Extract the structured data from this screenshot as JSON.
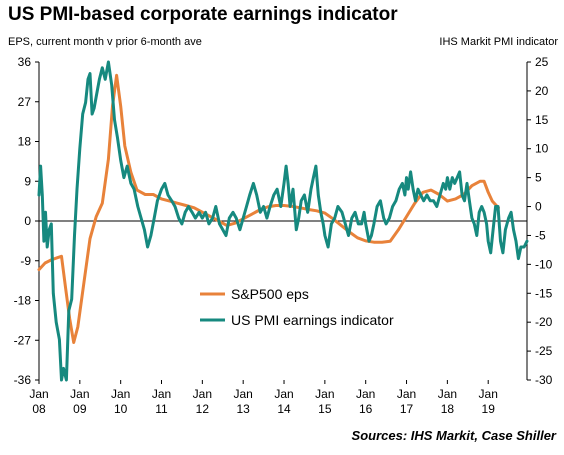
{
  "title": "US PMI-based corporate earnings indicator",
  "source": "Sources: IHS Markit, Case Shiller",
  "chart_data": {
    "type": "line",
    "title": "US PMI-based corporate earnings indicator",
    "left_axis": {
      "label": "EPS, current month v prior 6-month ave",
      "ylim": [
        -36,
        36
      ],
      "ticks": [
        -36,
        -27,
        -18,
        -9,
        0,
        9,
        18,
        27,
        36
      ]
    },
    "right_axis": {
      "label": "IHS Markit PMI indicator",
      "ylim": [
        -30,
        25
      ],
      "ticks": [
        -30,
        -25,
        -20,
        -15,
        -10,
        -5,
        0,
        5,
        10,
        15,
        20,
        25
      ]
    },
    "x_ticks": [
      {
        "line1": "Jan",
        "line2": "08",
        "x": 2008.0
      },
      {
        "line1": "Jan",
        "line2": "09",
        "x": 2009.0
      },
      {
        "line1": "Jan",
        "line2": "10",
        "x": 2010.0
      },
      {
        "line1": "Jan",
        "line2": "11",
        "x": 2011.0
      },
      {
        "line1": "Jan",
        "line2": "12",
        "x": 2012.0
      },
      {
        "line1": "Jan",
        "line2": "13",
        "x": 2013.0
      },
      {
        "line1": "Jan",
        "line2": "14",
        "x": 2014.0
      },
      {
        "line1": "Jan",
        "line2": "15",
        "x": 2015.0
      },
      {
        "line1": "Jan",
        "line2": "16",
        "x": 2016.0
      },
      {
        "line1": "Jan",
        "line2": "17",
        "x": 2017.0
      },
      {
        "line1": "Jan",
        "line2": "18",
        "x": 2018.0
      },
      {
        "line1": "Jan",
        "line2": "19",
        "x": 2019.0
      }
    ],
    "xlim": [
      2008.0,
      2019.95
    ],
    "grid": false,
    "legend_placement": "lower-center",
    "series": [
      {
        "name": "S&P500 eps",
        "axis": "left",
        "color": "#E8823A",
        "points": [
          [
            2008.0,
            -11
          ],
          [
            2008.15,
            -9.5
          ],
          [
            2008.3,
            -8.8
          ],
          [
            2008.45,
            -8.3
          ],
          [
            2008.55,
            -8
          ],
          [
            2008.65,
            -15
          ],
          [
            2008.75,
            -22
          ],
          [
            2008.85,
            -27.5
          ],
          [
            2008.95,
            -24
          ],
          [
            2009.1,
            -14
          ],
          [
            2009.25,
            -4
          ],
          [
            2009.4,
            1
          ],
          [
            2009.55,
            4
          ],
          [
            2009.7,
            14
          ],
          [
            2009.8,
            26
          ],
          [
            2009.9,
            33
          ],
          [
            2010.0,
            26
          ],
          [
            2010.1,
            17
          ],
          [
            2010.25,
            11
          ],
          [
            2010.4,
            7
          ],
          [
            2010.6,
            6
          ],
          [
            2010.8,
            6
          ],
          [
            2011.0,
            5
          ],
          [
            2011.2,
            4.5
          ],
          [
            2011.4,
            4
          ],
          [
            2011.6,
            3.5
          ],
          [
            2011.8,
            3
          ],
          [
            2012.0,
            2
          ],
          [
            2012.2,
            1
          ],
          [
            2012.4,
            0
          ],
          [
            2012.6,
            -1
          ],
          [
            2012.8,
            -0.5
          ],
          [
            2013.0,
            0.5
          ],
          [
            2013.2,
            1.5
          ],
          [
            2013.4,
            2.5
          ],
          [
            2013.6,
            3.2
          ],
          [
            2013.8,
            3.5
          ],
          [
            2014.0,
            3.5
          ],
          [
            2014.2,
            3.3
          ],
          [
            2014.4,
            3
          ],
          [
            2014.6,
            2.6
          ],
          [
            2014.8,
            2.3
          ],
          [
            2015.0,
            1.8
          ],
          [
            2015.2,
            0.5
          ],
          [
            2015.4,
            -1
          ],
          [
            2015.6,
            -2.5
          ],
          [
            2015.8,
            -3.8
          ],
          [
            2016.0,
            -4.5
          ],
          [
            2016.2,
            -4.8
          ],
          [
            2016.4,
            -4.8
          ],
          [
            2016.6,
            -4.6
          ],
          [
            2016.8,
            -2
          ],
          [
            2017.0,
            1
          ],
          [
            2017.2,
            4
          ],
          [
            2017.4,
            6.5
          ],
          [
            2017.6,
            7
          ],
          [
            2017.8,
            6
          ],
          [
            2018.0,
            4.5
          ],
          [
            2018.2,
            5
          ],
          [
            2018.4,
            6
          ],
          [
            2018.6,
            8
          ],
          [
            2018.8,
            9
          ],
          [
            2018.9,
            9
          ],
          [
            2019.0,
            6.5
          ],
          [
            2019.1,
            4.5
          ],
          [
            2019.25,
            3
          ]
        ]
      },
      {
        "name": "US PMI earnings indicator",
        "axis": "right",
        "color": "#16897F",
        "points": [
          [
            2008.0,
            2
          ],
          [
            2008.04,
            7
          ],
          [
            2008.08,
            2
          ],
          [
            2008.12,
            -6
          ],
          [
            2008.16,
            -1
          ],
          [
            2008.2,
            -7
          ],
          [
            2008.25,
            -4
          ],
          [
            2008.3,
            -3
          ],
          [
            2008.35,
            -15
          ],
          [
            2008.42,
            -20
          ],
          [
            2008.5,
            -23
          ],
          [
            2008.55,
            -30
          ],
          [
            2008.6,
            -28
          ],
          [
            2008.67,
            -30
          ],
          [
            2008.73,
            -18
          ],
          [
            2008.8,
            -16
          ],
          [
            2008.87,
            -5
          ],
          [
            2008.93,
            3
          ],
          [
            2009.0,
            10
          ],
          [
            2009.07,
            16
          ],
          [
            2009.14,
            18
          ],
          [
            2009.2,
            22
          ],
          [
            2009.25,
            23
          ],
          [
            2009.3,
            16
          ],
          [
            2009.35,
            17
          ],
          [
            2009.4,
            19
          ],
          [
            2009.48,
            22
          ],
          [
            2009.55,
            24
          ],
          [
            2009.62,
            22
          ],
          [
            2009.7,
            25
          ],
          [
            2009.78,
            21
          ],
          [
            2009.85,
            15
          ],
          [
            2009.92,
            12
          ],
          [
            2010.0,
            8
          ],
          [
            2010.08,
            5
          ],
          [
            2010.16,
            7
          ],
          [
            2010.25,
            4
          ],
          [
            2010.33,
            3
          ],
          [
            2010.42,
            0
          ],
          [
            2010.5,
            -2
          ],
          [
            2010.58,
            -4
          ],
          [
            2010.66,
            -7
          ],
          [
            2010.74,
            -5
          ],
          [
            2010.82,
            -2
          ],
          [
            2010.9,
            1
          ],
          [
            2011.0,
            3
          ],
          [
            2011.08,
            4
          ],
          [
            2011.16,
            2
          ],
          [
            2011.25,
            1
          ],
          [
            2011.33,
            0
          ],
          [
            2011.42,
            -2
          ],
          [
            2011.5,
            -3
          ],
          [
            2011.58,
            -1
          ],
          [
            2011.66,
            0
          ],
          [
            2011.75,
            -1
          ],
          [
            2011.83,
            -2
          ],
          [
            2011.92,
            -1
          ],
          [
            2012.0,
            -2
          ],
          [
            2012.08,
            -1
          ],
          [
            2012.16,
            -3
          ],
          [
            2012.25,
            -2
          ],
          [
            2012.33,
            0
          ],
          [
            2012.42,
            -3
          ],
          [
            2012.5,
            -4
          ],
          [
            2012.58,
            -5
          ],
          [
            2012.66,
            -2
          ],
          [
            2012.75,
            -1
          ],
          [
            2012.83,
            -2
          ],
          [
            2012.92,
            -4
          ],
          [
            2013.0,
            -2
          ],
          [
            2013.08,
            0
          ],
          [
            2013.16,
            2
          ],
          [
            2013.25,
            4
          ],
          [
            2013.33,
            2
          ],
          [
            2013.42,
            -1
          ],
          [
            2013.5,
            0
          ],
          [
            2013.58,
            -2
          ],
          [
            2013.66,
            0
          ],
          [
            2013.75,
            2
          ],
          [
            2013.83,
            3
          ],
          [
            2013.92,
            0
          ],
          [
            2014.0,
            4
          ],
          [
            2014.05,
            7
          ],
          [
            2014.1,
            4
          ],
          [
            2014.15,
            0
          ],
          [
            2014.22,
            3
          ],
          [
            2014.3,
            -4
          ],
          [
            2014.36,
            -2
          ],
          [
            2014.42,
            1
          ],
          [
            2014.5,
            2
          ],
          [
            2014.58,
            -1
          ],
          [
            2014.66,
            3
          ],
          [
            2014.72,
            5
          ],
          [
            2014.78,
            7
          ],
          [
            2014.84,
            2
          ],
          [
            2014.9,
            -1
          ],
          [
            2014.96,
            -3
          ],
          [
            2015.0,
            -5
          ],
          [
            2015.08,
            -7
          ],
          [
            2015.16,
            -3
          ],
          [
            2015.24,
            -2
          ],
          [
            2015.32,
            0
          ],
          [
            2015.42,
            -1
          ],
          [
            2015.5,
            -3
          ],
          [
            2015.58,
            -5
          ],
          [
            2015.66,
            -2
          ],
          [
            2015.74,
            -1
          ],
          [
            2015.82,
            -3
          ],
          [
            2015.9,
            -3
          ],
          [
            2015.96,
            -1
          ],
          [
            2016.0,
            -3
          ],
          [
            2016.08,
            -6
          ],
          [
            2016.14,
            -5
          ],
          [
            2016.2,
            -3
          ],
          [
            2016.28,
            0
          ],
          [
            2016.36,
            1
          ],
          [
            2016.44,
            -2
          ],
          [
            2016.5,
            -3
          ],
          [
            2016.58,
            -2
          ],
          [
            2016.66,
            0
          ],
          [
            2016.74,
            1
          ],
          [
            2016.82,
            3
          ],
          [
            2016.9,
            4
          ],
          [
            2016.96,
            2
          ],
          [
            2017.0,
            5
          ],
          [
            2017.04,
            3
          ],
          [
            2017.1,
            6
          ],
          [
            2017.16,
            3
          ],
          [
            2017.22,
            1
          ],
          [
            2017.28,
            3
          ],
          [
            2017.35,
            2
          ],
          [
            2017.42,
            1
          ],
          [
            2017.5,
            2
          ],
          [
            2017.58,
            1
          ],
          [
            2017.66,
            1
          ],
          [
            2017.74,
            0
          ],
          [
            2017.82,
            2
          ],
          [
            2017.9,
            4
          ],
          [
            2017.96,
            3
          ],
          [
            2018.0,
            5
          ],
          [
            2018.06,
            3
          ],
          [
            2018.12,
            5
          ],
          [
            2018.18,
            4
          ],
          [
            2018.24,
            5
          ],
          [
            2018.3,
            6
          ],
          [
            2018.36,
            2
          ],
          [
            2018.42,
            1
          ],
          [
            2018.48,
            4
          ],
          [
            2018.54,
            1
          ],
          [
            2018.6,
            -2
          ],
          [
            2018.66,
            -3
          ],
          [
            2018.72,
            -5
          ],
          [
            2018.78,
            -1
          ],
          [
            2018.84,
            0
          ],
          [
            2018.9,
            -1
          ],
          [
            2018.96,
            -3
          ],
          [
            2019.0,
            -6
          ],
          [
            2019.06,
            -8
          ],
          [
            2019.12,
            -4
          ],
          [
            2019.18,
            0
          ],
          [
            2019.24,
            0
          ],
          [
            2019.3,
            -6
          ],
          [
            2019.36,
            -8
          ],
          [
            2019.42,
            -4
          ],
          [
            2019.5,
            -2
          ],
          [
            2019.56,
            -1
          ],
          [
            2019.62,
            -4
          ],
          [
            2019.68,
            -6
          ],
          [
            2019.74,
            -9
          ],
          [
            2019.8,
            -7
          ],
          [
            2019.88,
            -7
          ],
          [
            2019.95,
            -6
          ]
        ]
      }
    ]
  }
}
